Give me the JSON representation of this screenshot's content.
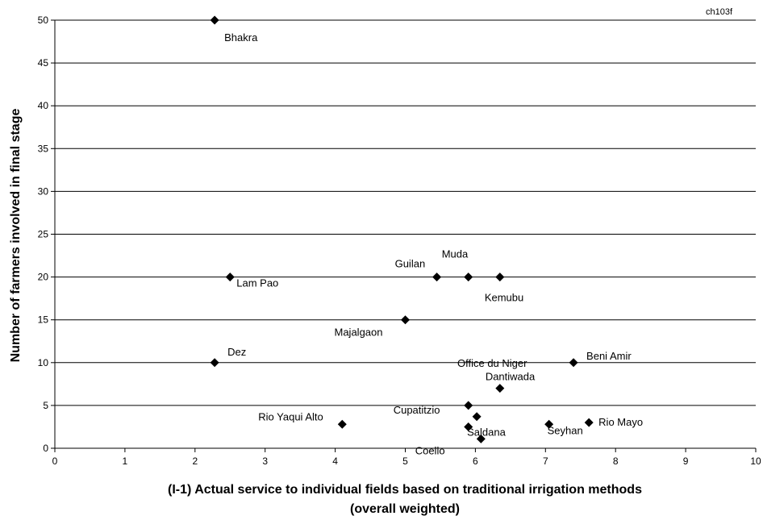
{
  "chart_data": {
    "type": "scatter",
    "corner_label": "ch103f",
    "title": "",
    "xlabel_lines": [
      "(I-1) Actual service to individual fields based on traditional irrigation methods",
      "(overall weighted)"
    ],
    "ylabel": "Number of farmers involved in final stage",
    "xlim": [
      0,
      10
    ],
    "ylim": [
      0,
      50
    ],
    "xticks": [
      0,
      1,
      2,
      3,
      4,
      5,
      6,
      7,
      8,
      9,
      10
    ],
    "yticks": [
      0,
      5,
      10,
      15,
      20,
      25,
      30,
      35,
      40,
      45,
      50
    ],
    "grid": "horizontal major gridlines",
    "legend": "none",
    "marker": "diamond",
    "marker_color": "#000000",
    "points": [
      {
        "label": "Bhakra",
        "x": 2.28,
        "y": 50
      },
      {
        "label": "Lam Pao",
        "x": 2.5,
        "y": 20
      },
      {
        "label": "Dez",
        "x": 2.28,
        "y": 10
      },
      {
        "label": "Rio Yaqui Alto",
        "x": 4.1,
        "y": 2.8
      },
      {
        "label": "Majalgaon",
        "x": 5.0,
        "y": 15
      },
      {
        "label": "Guilan",
        "x": 5.45,
        "y": 20
      },
      {
        "label": "Muda",
        "x": 5.9,
        "y": 20
      },
      {
        "label": "Kemubu",
        "x": 6.35,
        "y": 20
      },
      {
        "label": "Cupatitzio",
        "x": 5.9,
        "y": 5
      },
      {
        "label": "Saldana",
        "x": 6.02,
        "y": 3.7
      },
      {
        "label": "Coello",
        "x": 5.9,
        "y": 2.5
      },
      {
        "label": "",
        "x": 6.08,
        "y": 1.1
      },
      {
        "label": "Dantiwada",
        "x": 6.35,
        "y": 7
      },
      {
        "label": "Office du Niger",
        "x": null,
        "y": null
      },
      {
        "label": "Beni Amir",
        "x": 7.4,
        "y": 10
      },
      {
        "label": "Seyhan",
        "x": 7.05,
        "y": 2.8
      },
      {
        "label": "Rio Mayo",
        "x": 7.62,
        "y": 3
      }
    ]
  }
}
